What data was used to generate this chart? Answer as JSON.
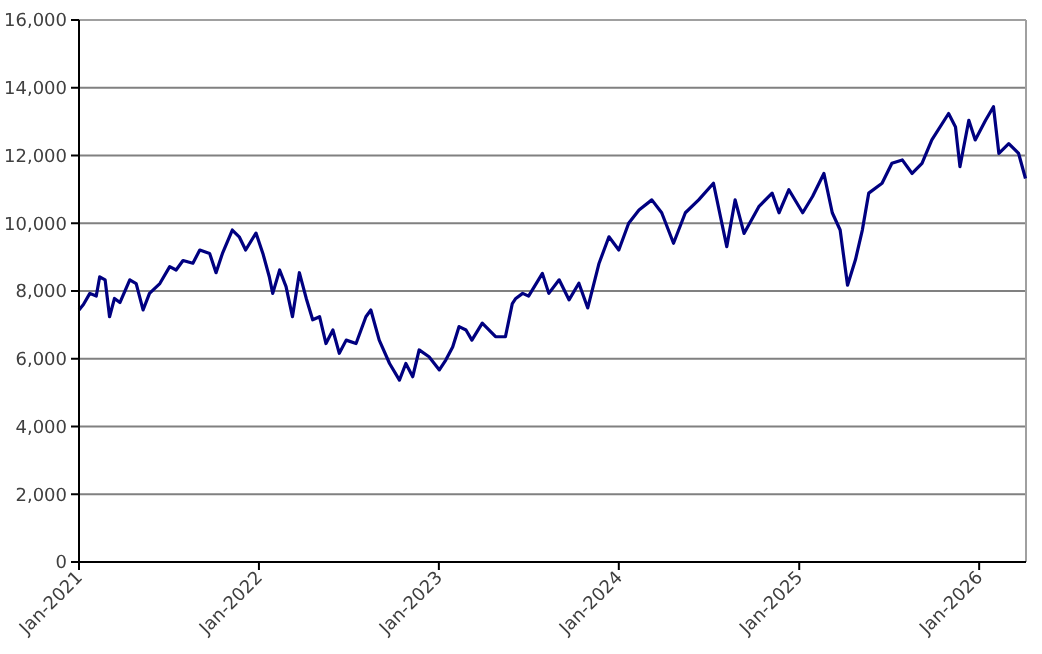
{
  "chart_data": {
    "type": "line",
    "grid": "y",
    "xlim": [
      "2021-01-01",
      "2026-04-06"
    ],
    "ylim": [
      0,
      16000
    ],
    "yticks": [
      0,
      {
        "value": 2000,
        "label": "2,000"
      },
      {
        "value": 4000,
        "label": "4,000"
      },
      {
        "value": 6000,
        "label": "6,000"
      },
      {
        "value": 8000,
        "label": "8,000"
      },
      {
        "value": 10000,
        "label": "10,000"
      },
      {
        "value": 12000,
        "label": "12,000"
      },
      {
        "value": 14000,
        "label": "14,000"
      },
      {
        "value": 16000,
        "label": "16,000"
      }
    ],
    "xticks": [
      {
        "value": "2021-01-01",
        "label": "Jan-2021"
      },
      {
        "value": "2022-01-01",
        "label": "Jan-2022"
      },
      {
        "value": "2023-01-01",
        "label": "Jan-2023"
      },
      {
        "value": "2024-01-01",
        "label": "Jan-2024"
      },
      {
        "value": "2025-01-01",
        "label": "Jan-2025"
      },
      {
        "value": "2026-01-01",
        "label": "Jan-2026"
      }
    ],
    "x": [
      "2021-01-01",
      "2021-01-10",
      "2021-01-23",
      "2021-02-05",
      "2021-02-12",
      "2021-02-23",
      "2021-03-04",
      "2021-03-14",
      "2021-03-25",
      "2021-04-14",
      "2021-04-27",
      "2021-05-11",
      "2021-05-24",
      "2021-06-14",
      "2021-07-04",
      "2021-07-17",
      "2021-07-31",
      "2021-08-20",
      "2021-09-03",
      "2021-09-23",
      "2021-10-06",
      "2021-10-19",
      "2021-11-08",
      "2021-11-22",
      "2021-12-05",
      "2021-12-26",
      "2022-01-09",
      "2022-01-22",
      "2022-01-29",
      "2022-02-12",
      "2022-02-25",
      "2022-03-10",
      "2022-03-24",
      "2022-04-07",
      "2022-04-20",
      "2022-05-04",
      "2022-05-17",
      "2022-05-31",
      "2022-06-13",
      "2022-06-27",
      "2022-07-17",
      "2022-08-06",
      "2022-08-16",
      "2022-09-02",
      "2022-09-23",
      "2022-10-13",
      "2022-10-26",
      "2022-11-09",
      "2022-11-22",
      "2022-12-12",
      "2023-01-02",
      "2023-01-15",
      "2023-01-29",
      "2023-02-11",
      "2023-02-25",
      "2023-03-09",
      "2023-03-30",
      "2023-04-26",
      "2023-05-16",
      "2023-05-23",
      "2023-05-30",
      "2023-06-06",
      "2023-06-20",
      "2023-07-02",
      "2023-07-30",
      "2023-08-12",
      "2023-09-02",
      "2023-09-22",
      "2023-10-12",
      "2023-10-30",
      "2023-11-22",
      "2023-12-12",
      "2024-01-01",
      "2024-01-21",
      "2024-02-11",
      "2024-03-08",
      "2024-03-28",
      "2024-04-21",
      "2024-05-15",
      "2024-06-11",
      "2024-07-11",
      "2024-08-07",
      "2024-08-24",
      "2024-09-11",
      "2024-10-11",
      "2024-11-07",
      "2024-11-21",
      "2024-12-11",
      "2025-01-08",
      "2025-01-28",
      "2025-02-20",
      "2025-03-09",
      "2025-03-25",
      "2025-04-09",
      "2025-04-25",
      "2025-05-09",
      "2025-05-22",
      "2025-06-18",
      "2025-07-08",
      "2025-07-29",
      "2025-08-18",
      "2025-09-07",
      "2025-09-27",
      "2025-10-31",
      "2025-11-14",
      "2025-11-23",
      "2025-12-11",
      "2025-12-24",
      "2026-01-14",
      "2026-01-30",
      "2026-02-10",
      "2026-03-02",
      "2026-03-22",
      "2026-04-05"
    ],
    "series": [
      {
        "color": "#000080",
        "values": [
          7440,
          7600,
          7930,
          7850,
          8420,
          8330,
          7240,
          7780,
          7660,
          8330,
          8220,
          7440,
          7930,
          8220,
          8720,
          8620,
          8900,
          8820,
          9210,
          9110,
          8540,
          9110,
          9800,
          9600,
          9210,
          9710,
          9110,
          8420,
          7930,
          8620,
          8130,
          7240,
          8540,
          7780,
          7150,
          7240,
          6450,
          6850,
          6160,
          6550,
          6450,
          7240,
          7440,
          6550,
          5860,
          5370,
          5860,
          5470,
          6260,
          6060,
          5670,
          5960,
          6350,
          6950,
          6850,
          6550,
          7050,
          6650,
          6650,
          7140,
          7630,
          7780,
          7930,
          7850,
          8520,
          7930,
          8330,
          7740,
          8230,
          7500,
          8820,
          9600,
          9210,
          10000,
          10390,
          10690,
          10310,
          9410,
          10310,
          10690,
          11180,
          9310,
          10690,
          9700,
          10490,
          10890,
          10310,
          10990,
          10310,
          10790,
          11470,
          10310,
          9800,
          8170,
          8920,
          9800,
          10890,
          11180,
          11770,
          11870,
          11470,
          11770,
          12460,
          13240,
          12840,
          11670,
          13040,
          12460,
          13040,
          13440,
          12060,
          12350,
          12060,
          11320
        ]
      }
    ]
  }
}
